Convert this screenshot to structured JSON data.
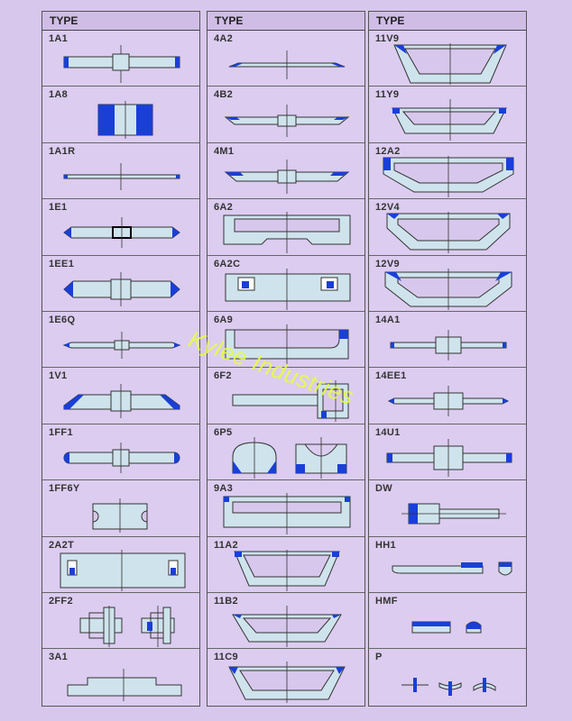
{
  "header": "TYPE",
  "watermark": "Kylee Industries",
  "colors": {
    "abrasive": "#1a3fd6",
    "body": "#cfe3ec",
    "outline": "#333333"
  },
  "columns": [
    {
      "types": [
        "1A1",
        "1A8",
        "1A1R",
        "1E1",
        "1EE1",
        "1E6Q",
        "1V1",
        "1FF1",
        "1FF6Y",
        "2A2T",
        "2FF2",
        "3A1"
      ]
    },
    {
      "types": [
        "4A2",
        "4B2",
        "4M1",
        "6A2",
        "6A2C",
        "6A9",
        "6F2",
        "6P5",
        "9A3",
        "11A2",
        "11B2",
        "11C9"
      ]
    },
    {
      "types": [
        "11V9",
        "11Y9",
        "12A2",
        "12V4",
        "12V9",
        "14A1",
        "14EE1",
        "14U1",
        "DW",
        "HH1",
        "HMF",
        "P"
      ]
    }
  ]
}
